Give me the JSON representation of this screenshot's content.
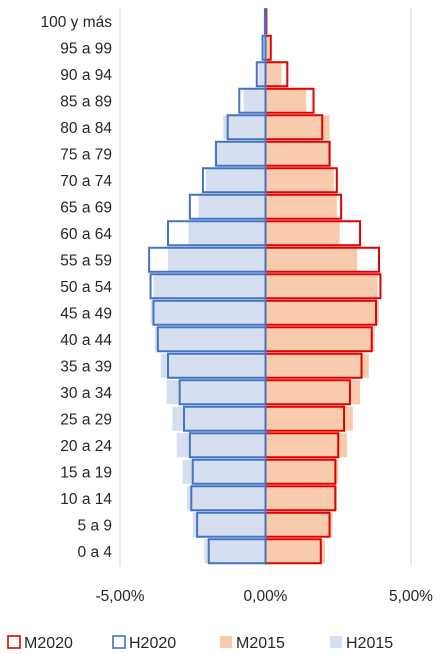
{
  "chart_data": {
    "type": "bar",
    "orientation": "horizontal",
    "subtype": "population-pyramid",
    "categories": [
      "100 y más",
      "95 a 99",
      "90 a 94",
      "85 a 89",
      "80 a 84",
      "75 a 79",
      "70 a 74",
      "65 a 69",
      "60 a 64",
      "55 a 59",
      "50 a 54",
      "45 a 49",
      "40 a 44",
      "35 a 39",
      "30 a 34",
      "25 a 29",
      "20 a 24",
      "15 a 19",
      "10 a 14",
      "5 a 9",
      "0 a 4"
    ],
    "series": [
      {
        "name": "M2020",
        "side": "right",
        "style": "outline",
        "color": "#e00000",
        "values": [
          0.03,
          0.18,
          0.75,
          1.65,
          1.95,
          2.2,
          2.45,
          2.6,
          3.25,
          3.9,
          3.95,
          3.8,
          3.65,
          3.3,
          2.9,
          2.7,
          2.5,
          2.4,
          2.4,
          2.2,
          1.9
        ]
      },
      {
        "name": "H2020",
        "side": "left",
        "style": "outline",
        "color": "#4472c4",
        "values": [
          -0.02,
          -0.1,
          -0.3,
          -0.9,
          -1.3,
          -1.7,
          -2.15,
          -2.6,
          -3.35,
          -4.0,
          -3.95,
          -3.85,
          -3.7,
          -3.35,
          -2.95,
          -2.8,
          -2.6,
          -2.5,
          -2.55,
          -2.35,
          -1.95
        ]
      },
      {
        "name": "M2015",
        "side": "right",
        "style": "fill",
        "color": "#f8cbad",
        "values": [
          0.02,
          0.12,
          0.55,
          1.4,
          2.2,
          2.25,
          2.35,
          2.45,
          2.55,
          3.15,
          3.85,
          3.9,
          3.75,
          3.55,
          3.25,
          3.0,
          2.8,
          2.5,
          2.45,
          2.3,
          2.05
        ]
      },
      {
        "name": "H2015",
        "side": "left",
        "style": "fill",
        "color": "#d6dff0",
        "values": [
          -0.01,
          -0.05,
          -0.25,
          -0.75,
          -1.45,
          -1.75,
          -2.05,
          -2.3,
          -2.65,
          -3.35,
          -3.85,
          -3.95,
          -3.8,
          -3.6,
          -3.4,
          -3.2,
          -3.05,
          -2.85,
          -2.7,
          -2.5,
          -2.1
        ]
      }
    ],
    "xlim": [
      -5.0,
      5.0
    ],
    "xticks": [
      -5,
      0,
      5
    ],
    "xtick_labels": [
      "-5,00%",
      "0,00%",
      "5,00%"
    ],
    "grid": "vertical",
    "legend_position": "bottom"
  }
}
